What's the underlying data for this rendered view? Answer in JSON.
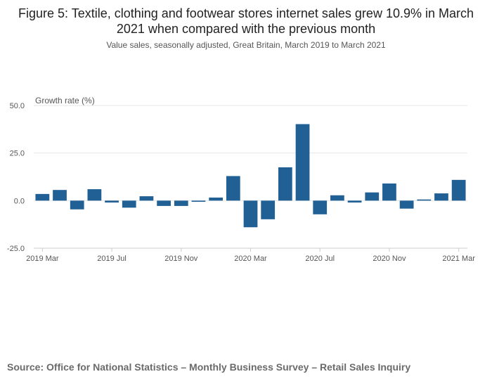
{
  "title": "Figure 5: Textile, clothing and footwear stores internet sales grew 10.9% in March 2021 when compared with the previous month",
  "subtitle": "Value sales, seasonally adjusted, Great Britain, March 2019 to March 2021",
  "source": "Source: Office for National Statistics – Monthly Business Survey – Retail Sales Inquiry",
  "colors": {
    "bar": "#206095",
    "grid": "#e6e6e6",
    "axis": "#cccccc",
    "text": "#555555"
  },
  "chart_data": {
    "type": "bar",
    "title": "Figure 5: Textile, clothing and footwear stores internet sales grew 10.9% in March 2021 when compared with the previous month",
    "ylabel": "Growth rate (%)",
    "xlabel": "",
    "ylim": [
      -25,
      50
    ],
    "yticks": [
      "50.0",
      "25.0",
      "0.0",
      "-25.0"
    ],
    "ytick_values": [
      50,
      25,
      0,
      -25
    ],
    "xtick_labels": [
      {
        "index": 0,
        "label": "2019 Mar"
      },
      {
        "index": 4,
        "label": "2019 Jul"
      },
      {
        "index": 8,
        "label": "2019 Nov"
      },
      {
        "index": 12,
        "label": "2020 Mar"
      },
      {
        "index": 16,
        "label": "2020 Jul"
      },
      {
        "index": 20,
        "label": "2020 Nov"
      },
      {
        "index": 24,
        "label": "2021 Mar"
      }
    ],
    "categories": [
      "2019 Mar",
      "2019 Apr",
      "2019 May",
      "2019 Jun",
      "2019 Jul",
      "2019 Aug",
      "2019 Sep",
      "2019 Oct",
      "2019 Nov",
      "2019 Dec",
      "2020 Jan",
      "2020 Feb",
      "2020 Mar",
      "2020 Apr",
      "2020 May",
      "2020 Jun",
      "2020 Jul",
      "2020 Aug",
      "2020 Sep",
      "2020 Oct",
      "2020 Nov",
      "2020 Dec",
      "2021 Jan",
      "2021 Feb",
      "2021 Mar"
    ],
    "values": [
      3.5,
      5.6,
      -4.6,
      6.0,
      -1.0,
      -3.7,
      2.3,
      -2.8,
      -2.8,
      -0.6,
      1.6,
      12.9,
      -14.0,
      -9.8,
      17.5,
      40.2,
      -7.2,
      2.8,
      -1.0,
      4.3,
      9.0,
      -4.2,
      0.6,
      3.8,
      10.9
    ],
    "grid": true
  }
}
